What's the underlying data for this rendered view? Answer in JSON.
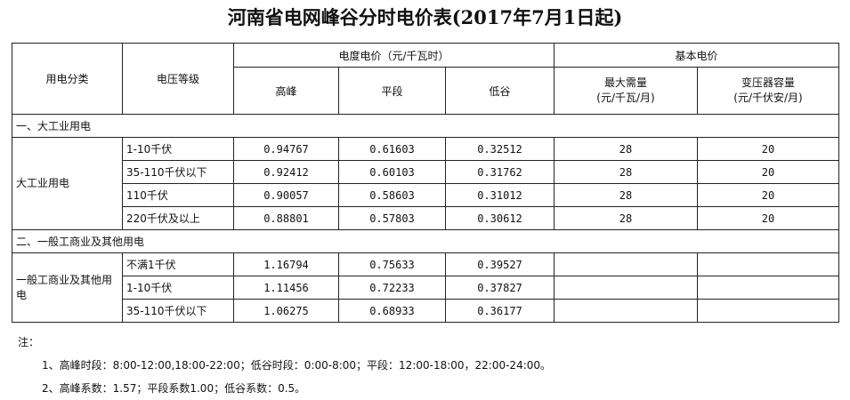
{
  "title": "河南省电网峰谷分时电价表(2017年7月1日起)",
  "header": {
    "category": "用电分类",
    "voltage": "电压等级",
    "energy_price": "电度电价（元/千瓦时）",
    "basic_price": "基本电价",
    "peak": "高峰",
    "flat": "平段",
    "valley": "低谷",
    "max_demand": "最大需量\n(元/千瓦/月)",
    "transformer": "变压器容量\n(元/千伏安/月)"
  },
  "sections": [
    {
      "title": "一、大工业用电",
      "category": "大工业用电",
      "rows": [
        {
          "voltage": "1-10千伏",
          "peak": "0.94767",
          "flat": "0.61603",
          "valley": "0.32512",
          "max_demand": "28",
          "transformer": "20"
        },
        {
          "voltage": "35-110千伏以下",
          "peak": "0.92412",
          "flat": "0.60103",
          "valley": "0.31762",
          "max_demand": "28",
          "transformer": "20"
        },
        {
          "voltage": "110千伏",
          "peak": "0.90057",
          "flat": "0.58603",
          "valley": "0.31012",
          "max_demand": "28",
          "transformer": "20"
        },
        {
          "voltage": "220千伏及以上",
          "peak": "0.88801",
          "flat": "0.57803",
          "valley": "0.30612",
          "max_demand": "28",
          "transformer": "20"
        }
      ]
    },
    {
      "title": "二、一般工商业及其他用电",
      "category": "一般工商业及其他用电",
      "rows": [
        {
          "voltage": "不满1千伏",
          "peak": "1.16794",
          "flat": "0.75633",
          "valley": "0.39527",
          "max_demand": "",
          "transformer": ""
        },
        {
          "voltage": "1-10千伏",
          "peak": "1.11456",
          "flat": "0.72233",
          "valley": "0.37827",
          "max_demand": "",
          "transformer": ""
        },
        {
          "voltage": "35-110千伏以下",
          "peak": "1.06275",
          "flat": "0.68933",
          "valley": "0.36177",
          "max_demand": "",
          "transformer": ""
        }
      ]
    }
  ],
  "notes": {
    "label": "注：",
    "items": [
      "1、高峰时段：8:00-12:00,18:00-22:00；低谷时段：0:00-8:00；平段：12:00-18:00，22:00-24:00。",
      "2、高峰系数：1.57；平段系数1.00；低谷系数：0.5。"
    ]
  }
}
